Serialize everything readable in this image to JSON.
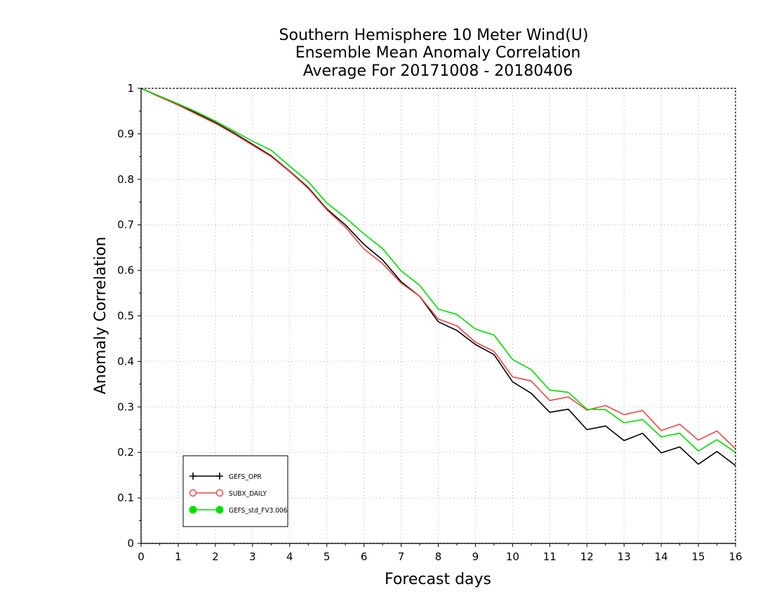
{
  "chart_data": {
    "type": "line",
    "title_lines": [
      "Southern Hemisphere 10 Meter Wind(U)",
      "Ensemble Mean Anomaly Correlation",
      "Average For 20171008 - 20180406"
    ],
    "xlabel": "Forecast days",
    "ylabel": "Anomaly Correlation",
    "xlim": [
      0,
      16
    ],
    "ylim": [
      0,
      1
    ],
    "x_ticks": [
      "0",
      "1",
      "2",
      "3",
      "4",
      "5",
      "6",
      "7",
      "8",
      "9",
      "10",
      "11",
      "12",
      "13",
      "14",
      "15",
      "16"
    ],
    "y_ticks": [
      "0",
      "0.1",
      "0.2",
      "0.3",
      "0.4",
      "0.5",
      "0.6",
      "0.7",
      "0.8",
      "0.9",
      "1"
    ],
    "grid": true,
    "legend_position": "bottom-left",
    "x": [
      0,
      0.5,
      1,
      1.5,
      2,
      2.5,
      3,
      3.5,
      4,
      4.5,
      5,
      5.5,
      6,
      6.5,
      7,
      7.5,
      8,
      8.5,
      9,
      9.5,
      10,
      10.5,
      11,
      11.5,
      12,
      12.5,
      13,
      13.5,
      14,
      14.5,
      15,
      15.5,
      16
    ],
    "series": [
      {
        "name": "GEFS_OPR",
        "color": "#000000",
        "marker": "plus",
        "values": [
          1.0,
          0.982,
          0.965,
          0.945,
          0.925,
          0.902,
          0.877,
          0.852,
          0.818,
          0.782,
          0.735,
          0.7,
          0.657,
          0.623,
          0.575,
          0.543,
          0.487,
          0.468,
          0.437,
          0.415,
          0.355,
          0.33,
          0.288,
          0.295,
          0.25,
          0.258,
          0.226,
          0.242,
          0.199,
          0.212,
          0.174,
          0.202,
          0.171
        ]
      },
      {
        "name": "SUBX_DAILY",
        "color": "#ee4444",
        "marker": "open-circle",
        "values": [
          1.0,
          0.981,
          0.963,
          0.943,
          0.923,
          0.9,
          0.875,
          0.85,
          0.817,
          0.78,
          0.733,
          0.695,
          0.647,
          0.615,
          0.572,
          0.543,
          0.493,
          0.478,
          0.442,
          0.422,
          0.366,
          0.357,
          0.314,
          0.322,
          0.293,
          0.303,
          0.283,
          0.292,
          0.248,
          0.262,
          0.227,
          0.247,
          0.208
        ]
      },
      {
        "name": "GEFS_std_FV3.006",
        "color": "#00dd00",
        "marker": "filled-circle",
        "values": [
          1.0,
          0.983,
          0.966,
          0.948,
          0.928,
          0.906,
          0.884,
          0.864,
          0.829,
          0.795,
          0.748,
          0.716,
          0.68,
          0.648,
          0.599,
          0.567,
          0.515,
          0.503,
          0.471,
          0.458,
          0.404,
          0.382,
          0.337,
          0.332,
          0.295,
          0.294,
          0.265,
          0.272,
          0.234,
          0.242,
          0.203,
          0.228,
          0.2
        ]
      }
    ]
  }
}
